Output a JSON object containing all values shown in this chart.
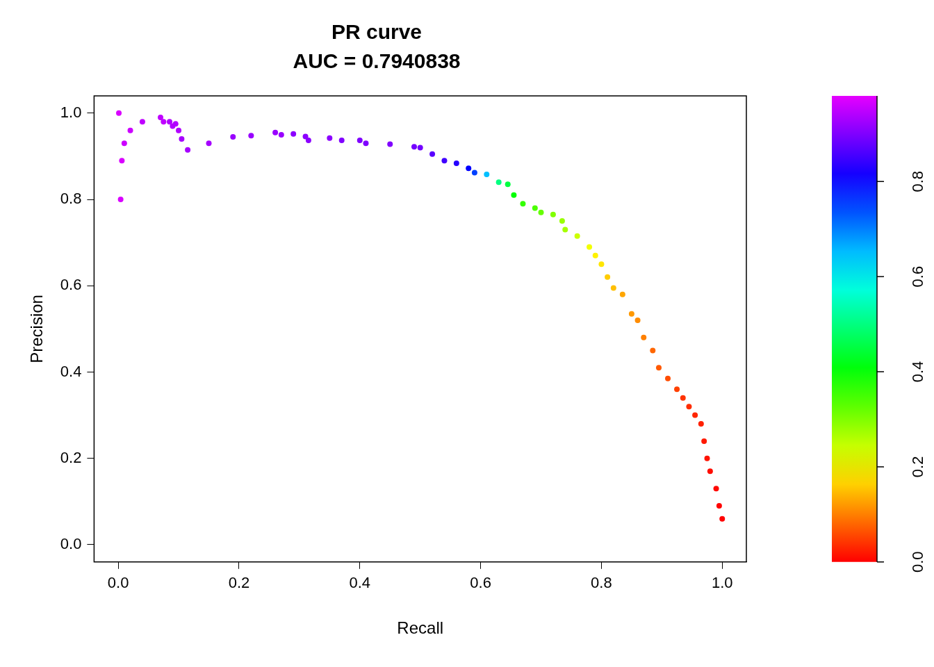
{
  "chart_data": {
    "type": "scatter",
    "title": "PR curve",
    "subtitle": "AUC = 0.7940838",
    "xlabel": "Recall",
    "ylabel": "Precision",
    "x": [
      0.001,
      0.004,
      0.006,
      0.01,
      0.02,
      0.04,
      0.07,
      0.075,
      0.085,
      0.09,
      0.095,
      0.1,
      0.105,
      0.115,
      0.15,
      0.19,
      0.22,
      0.26,
      0.27,
      0.29,
      0.31,
      0.315,
      0.35,
      0.37,
      0.4,
      0.41,
      0.45,
      0.49,
      0.5,
      0.52,
      0.54,
      0.56,
      0.58,
      0.59,
      0.61,
      0.63,
      0.645,
      0.655,
      0.67,
      0.69,
      0.7,
      0.72,
      0.735,
      0.74,
      0.76,
      0.78,
      0.79,
      0.8,
      0.81,
      0.82,
      0.835,
      0.85,
      0.86,
      0.87,
      0.885,
      0.895,
      0.91,
      0.925,
      0.935,
      0.945,
      0.955,
      0.965,
      0.97,
      0.975,
      0.98,
      0.99,
      0.995,
      1.0
    ],
    "values": [
      1.0,
      0.8,
      0.89,
      0.93,
      0.96,
      0.98,
      0.99,
      0.98,
      0.98,
      0.97,
      0.975,
      0.96,
      0.94,
      0.915,
      0.93,
      0.945,
      0.948,
      0.955,
      0.95,
      0.952,
      0.946,
      0.937,
      0.942,
      0.937,
      0.937,
      0.93,
      0.928,
      0.922,
      0.92,
      0.905,
      0.89,
      0.884,
      0.872,
      0.862,
      0.858,
      0.84,
      0.835,
      0.81,
      0.79,
      0.78,
      0.77,
      0.765,
      0.75,
      0.73,
      0.715,
      0.69,
      0.67,
      0.65,
      0.62,
      0.595,
      0.58,
      0.535,
      0.52,
      0.48,
      0.45,
      0.41,
      0.385,
      0.36,
      0.34,
      0.32,
      0.3,
      0.28,
      0.24,
      0.2,
      0.17,
      0.13,
      0.09,
      0.06
    ],
    "cvalues": [
      0.97,
      0.97,
      0.97,
      0.96,
      0.96,
      0.95,
      0.95,
      0.95,
      0.94,
      0.94,
      0.94,
      0.94,
      0.93,
      0.93,
      0.93,
      0.92,
      0.92,
      0.92,
      0.92,
      0.91,
      0.91,
      0.91,
      0.91,
      0.9,
      0.9,
      0.9,
      0.9,
      0.89,
      0.89,
      0.87,
      0.85,
      0.83,
      0.8,
      0.75,
      0.65,
      0.5,
      0.45,
      0.4,
      0.36,
      0.34,
      0.32,
      0.3,
      0.28,
      0.27,
      0.24,
      0.21,
      0.19,
      0.18,
      0.16,
      0.15,
      0.13,
      0.12,
      0.11,
      0.1,
      0.08,
      0.07,
      0.06,
      0.05,
      0.04,
      0.035,
      0.03,
      0.025,
      0.02,
      0.015,
      0.01,
      0.006,
      0.003,
      0.0
    ],
    "xlim": [
      -0.04,
      1.04
    ],
    "ylim": [
      -0.04,
      1.04
    ],
    "xticks": [
      {
        "value": 0,
        "label": "0.0"
      },
      0.2,
      0.4,
      0.6,
      0.8,
      {
        "value": 1,
        "label": "1.0"
      }
    ],
    "yticks": [
      {
        "value": 0,
        "label": "0.0"
      },
      0.2,
      0.4,
      0.6,
      0.8,
      {
        "value": 1,
        "label": "1.0"
      }
    ],
    "clim": [
      0,
      0.98
    ],
    "cticks": [
      {
        "value": 0,
        "label": "0.0"
      },
      0.2,
      0.4,
      0.6,
      0.8
    ],
    "grid": false,
    "legend": false,
    "marker": "circle"
  }
}
